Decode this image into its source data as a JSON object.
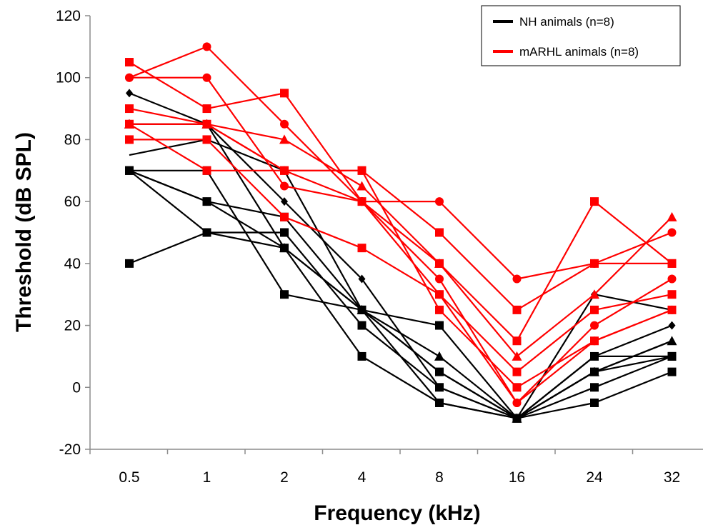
{
  "chart_data": {
    "type": "line",
    "xlabel": "Frequency (kHz)",
    "ylabel": "Threshold (dB SPL)",
    "categories": [
      "0.5",
      "1",
      "2",
      "4",
      "8",
      "16",
      "24",
      "32"
    ],
    "ylim": [
      -20,
      120
    ],
    "yticks": [
      -20,
      0,
      20,
      40,
      60,
      80,
      100,
      120
    ],
    "grid": false,
    "legend": {
      "placement": "top-right",
      "entries": [
        {
          "label": "NH  animals (n=8)",
          "color": "#000000"
        },
        {
          "label": "mARHL  animals (n=8)",
          "color": "#ff0000"
        }
      ]
    },
    "series": [
      {
        "group": "NH",
        "color": "#000000",
        "marker": "diamond",
        "values": [
          95,
          85,
          60,
          35,
          0,
          -10,
          30,
          25
        ]
      },
      {
        "group": "NH",
        "color": "#000000",
        "marker": "none",
        "values": [
          75,
          80,
          70,
          25,
          -5,
          -10,
          5,
          15
        ]
      },
      {
        "group": "NH",
        "color": "#000000",
        "marker": "square",
        "values": [
          70,
          60,
          55,
          25,
          20,
          -10,
          10,
          10
        ]
      },
      {
        "group": "NH",
        "color": "#000000",
        "marker": "square",
        "values": [
          70,
          70,
          30,
          25,
          5,
          -10,
          0,
          10
        ]
      },
      {
        "group": "NH",
        "color": "#000000",
        "marker": "square",
        "values": [
          70,
          50,
          45,
          10,
          -5,
          -10,
          -5,
          5
        ]
      },
      {
        "group": "NH",
        "color": "#000000",
        "marker": "square",
        "values": [
          40,
          50,
          50,
          20,
          0,
          -10,
          5,
          10
        ]
      },
      {
        "group": "NH",
        "color": "#000000",
        "marker": "triangle",
        "values": [
          85,
          85,
          45,
          25,
          10,
          -10,
          5,
          15
        ]
      },
      {
        "group": "NH",
        "color": "#000000",
        "marker": "diamond",
        "values": [
          70,
          60,
          45,
          25,
          5,
          -10,
          10,
          20
        ]
      },
      {
        "group": "mARHL",
        "color": "#ff0000",
        "marker": "square",
        "values": [
          105,
          90,
          95,
          60,
          40,
          15,
          60,
          40
        ]
      },
      {
        "group": "mARHL",
        "color": "#ff0000",
        "marker": "circle",
        "values": [
          100,
          110,
          85,
          60,
          60,
          35,
          40,
          50
        ]
      },
      {
        "group": "mARHL",
        "color": "#ff0000",
        "marker": "circle",
        "values": [
          100,
          100,
          65,
          60,
          35,
          -5,
          20,
          35
        ]
      },
      {
        "group": "mARHL",
        "color": "#ff0000",
        "marker": "square",
        "values": [
          90,
          85,
          70,
          70,
          50,
          25,
          40,
          40
        ]
      },
      {
        "group": "mARHL",
        "color": "#ff0000",
        "marker": "triangle",
        "values": [
          85,
          85,
          80,
          65,
          40,
          10,
          30,
          55
        ]
      },
      {
        "group": "mARHL",
        "color": "#ff0000",
        "marker": "square",
        "values": [
          85,
          70,
          70,
          70,
          25,
          0,
          15,
          25
        ]
      },
      {
        "group": "mARHL",
        "color": "#ff0000",
        "marker": "square",
        "values": [
          80,
          80,
          55,
          45,
          30,
          5,
          25,
          30
        ]
      },
      {
        "group": "mARHL",
        "color": "#ff0000",
        "marker": "circle",
        "values": [
          85,
          85,
          70,
          60,
          30,
          -5,
          15,
          25
        ]
      }
    ]
  }
}
